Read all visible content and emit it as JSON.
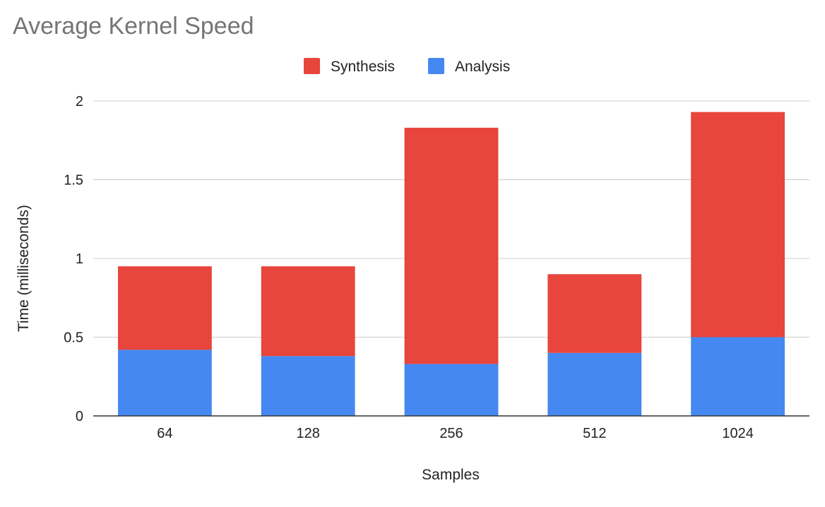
{
  "chart_data": {
    "type": "bar",
    "stacked": true,
    "title": "Average Kernel Speed",
    "xlabel": "Samples",
    "ylabel": "Time (milliseconds)",
    "categories": [
      "64",
      "128",
      "256",
      "512",
      "1024"
    ],
    "ylim": [
      0,
      2
    ],
    "yticks": [
      0,
      0.5,
      1,
      1.5,
      2
    ],
    "ytick_labels": [
      "0",
      "0.5",
      "1",
      "1.5",
      "2"
    ],
    "grid": true,
    "legend_position": "top-center",
    "legend_order": [
      "Synthesis",
      "Analysis"
    ],
    "series": [
      {
        "name": "Analysis",
        "color": "#4688f1",
        "values": [
          0.42,
          0.38,
          0.33,
          0.4,
          0.5
        ]
      },
      {
        "name": "Synthesis",
        "color": "#e8453c",
        "values": [
          0.53,
          0.57,
          1.5,
          0.5,
          1.43
        ]
      }
    ]
  }
}
